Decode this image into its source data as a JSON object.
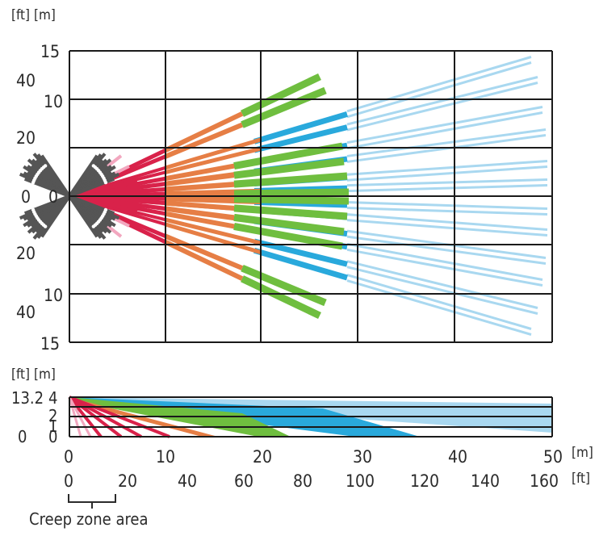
{
  "colors": {
    "red": "#d9224a",
    "orange": "#e67e45",
    "green": "#6fbe3f",
    "blue": "#29a9dc",
    "light_blue": "#a9d8f0",
    "pink": "#f2a7bf",
    "creep": "#555555",
    "grid": "#1a1a1a"
  },
  "top_view": {
    "unit_ft": "[ft]",
    "unit_m": "[m]",
    "y_labels_m": [
      "15",
      "10",
      "0",
      "10",
      "15"
    ],
    "y_labels_ft": [
      "40",
      "20",
      "0",
      "20",
      "40"
    ]
  },
  "side_view": {
    "unit_ft": "[ft]",
    "unit_m": "[m]",
    "y_labels_ft": [
      "13.2",
      "0"
    ],
    "y_labels_m": [
      "4",
      "2",
      "1",
      "0"
    ]
  },
  "x_axis": {
    "m_labels": [
      "0",
      "10",
      "20",
      "30",
      "40",
      "50"
    ],
    "m_unit": "[m]",
    "ft_labels": [
      "0",
      "20",
      "40",
      "60",
      "80",
      "100",
      "120",
      "140",
      "160"
    ],
    "ft_unit": "[ft]"
  },
  "creep_zone": {
    "label": "Creep zone area"
  }
}
